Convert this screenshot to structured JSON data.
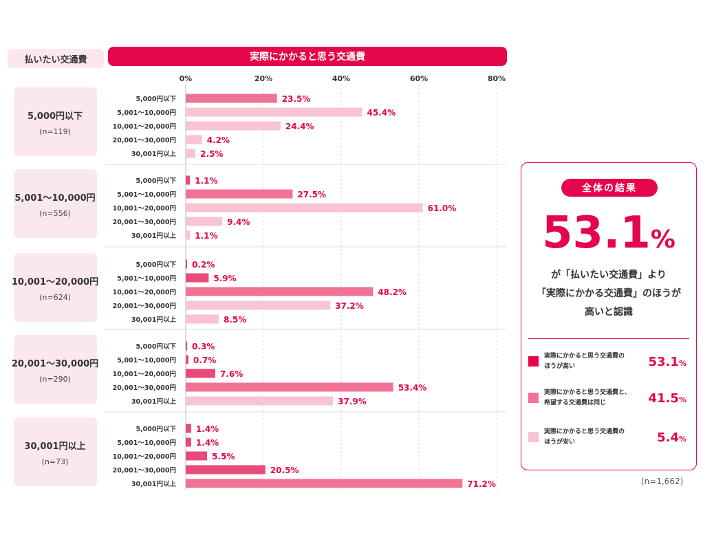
{
  "header": {
    "left_label": "払いたい交通費",
    "right_label": "実際にかかると思う交通費"
  },
  "chart_data": {
    "type": "bar",
    "orientation": "horizontal",
    "xlim": [
      0,
      80
    ],
    "ticks": [
      "0%",
      "20%",
      "40%",
      "60%",
      "80%"
    ],
    "tick_values": [
      0,
      20,
      40,
      60,
      80
    ],
    "categories": [
      "5,000円以下",
      "5,001～10,000円",
      "10,001～20,000円",
      "20,001～30,000円",
      "30,001円以上"
    ],
    "groups": [
      {
        "label": "5,000円以下",
        "n": "(n=119)",
        "values": [
          23.5,
          45.4,
          24.4,
          4.2,
          2.5
        ],
        "value_labels": [
          "23.5%",
          "45.4%",
          "24.4%",
          "4.2%",
          "2.5%"
        ]
      },
      {
        "label": "5,001～10,000円",
        "n": "(n=556)",
        "values": [
          1.1,
          27.5,
          61.0,
          9.4,
          1.1
        ],
        "value_labels": [
          "1.1%",
          "27.5%",
          "61.0%",
          "9.4%",
          "1.1%"
        ]
      },
      {
        "label": "10,001～20,000円",
        "n": "(n=624)",
        "values": [
          0.2,
          5.9,
          48.2,
          37.2,
          8.5
        ],
        "value_labels": [
          "0.2%",
          "5.9%",
          "48.2%",
          "37.2%",
          "8.5%"
        ]
      },
      {
        "label": "20,001～30,000円",
        "n": "(n=290)",
        "values": [
          0.3,
          0.7,
          7.6,
          53.4,
          37.9
        ],
        "value_labels": [
          "0.3%",
          "0.7%",
          "7.6%",
          "53.4%",
          "37.9%"
        ]
      },
      {
        "label": "30,001円以上",
        "n": "(n=73)",
        "values": [
          1.4,
          1.4,
          5.5,
          20.5,
          71.2
        ],
        "value_labels": [
          "1.4%",
          "1.4%",
          "5.5%",
          "20.5%",
          "71.2%"
        ]
      }
    ],
    "bar_colors": {
      "higher": "#e84b7a",
      "same": "#f07396",
      "lower": "#f8c4d3"
    }
  },
  "summary": {
    "pill": "全体の結果",
    "big_number": "53.1",
    "big_unit": "%",
    "desc_line1": "が「払いたい交通費」より",
    "desc_line2": "「実際にかかる交通費」のほうが",
    "desc_line3": "高いと認識",
    "legend": [
      {
        "line1": "実際にかかると思う交通費の",
        "line2": "ほうが高い",
        "value": "53.1",
        "unit": "%",
        "color": "#e5054a"
      },
      {
        "line1": "実際にかかると思う交通費と、",
        "line2": "希望する交通費は同じ",
        "value": "41.5",
        "unit": "%",
        "color": "#f07396"
      },
      {
        "line1": "実際にかかると思う交通費の",
        "line2": "ほうが安い",
        "value": "5.4",
        "unit": "%",
        "color": "#f8c4d3"
      }
    ],
    "n_total": "(n=1,662)"
  },
  "colors": {
    "accent": "#e5054a",
    "group_bg": "#fbe8ee",
    "text": "#333333"
  }
}
